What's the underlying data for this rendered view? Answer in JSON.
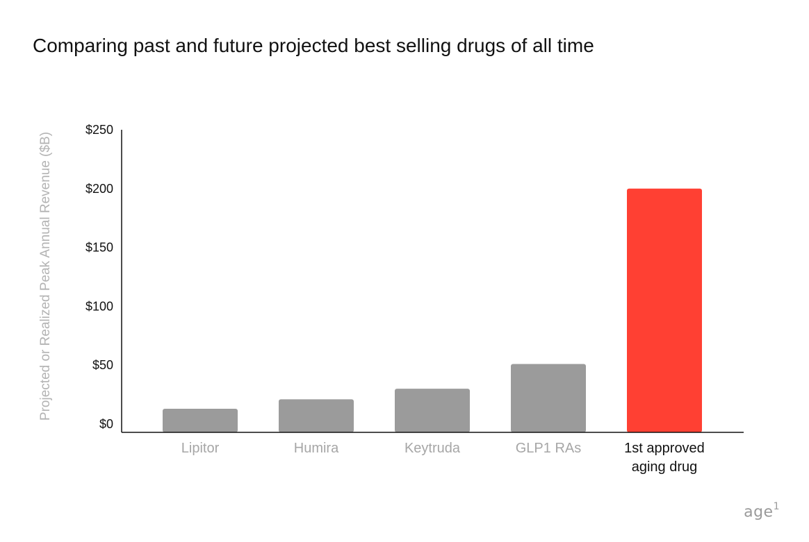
{
  "chart_data": {
    "type": "bar",
    "title": "Comparing past and future projected best selling drugs of all time",
    "xlabel": "",
    "ylabel": "Projected or Realized Peak Annual Revenue ($B)",
    "categories": [
      "Lipitor",
      "Humira",
      "Keytruda",
      "GLP1 RAs",
      "1st approved aging drug"
    ],
    "category_label_lines": [
      [
        "Lipitor"
      ],
      [
        "Humira"
      ],
      [
        "Keytruda"
      ],
      [
        "GLP1 RAs"
      ],
      [
        "1st approved",
        "aging drug"
      ]
    ],
    "values": [
      13,
      21,
      30,
      51,
      200
    ],
    "ylim": [
      0,
      250
    ],
    "yticks": [
      0,
      50,
      100,
      150,
      200,
      250
    ],
    "ytick_labels": [
      "$0",
      "$50",
      "$100",
      "$150",
      "$200",
      "$250"
    ],
    "bar_colors": [
      "#9b9b9b",
      "#9b9b9b",
      "#9b9b9b",
      "#9b9b9b",
      "#ff4033"
    ],
    "label_colors": [
      "#a6a6a6",
      "#a6a6a6",
      "#a6a6a6",
      "#a6a6a6",
      "#111111"
    ],
    "grid": false,
    "legend": "none"
  },
  "brand": {
    "name": "age",
    "sup": "1"
  }
}
